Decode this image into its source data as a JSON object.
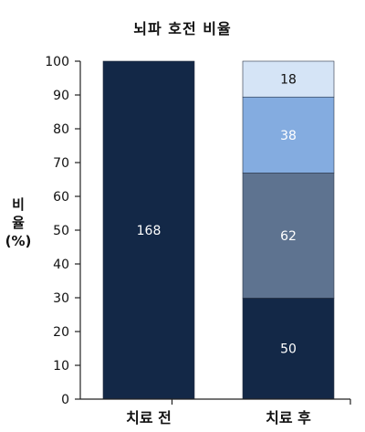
{
  "chart_data": {
    "type": "bar",
    "stacked": true,
    "title": "뇌파 호전 비율",
    "ylabel_lines": [
      "비",
      "율",
      "(%)"
    ],
    "xlabel": "",
    "ylim": [
      0,
      100
    ],
    "yticks": [
      0,
      10,
      20,
      30,
      40,
      50,
      60,
      70,
      80,
      90,
      100
    ],
    "grid": false,
    "legend": "none",
    "categories": [
      "치료 전",
      "치료 후"
    ],
    "bars": [
      {
        "category": "치료 전",
        "segments": [
          {
            "count_label": "168",
            "from": 0,
            "to": 100,
            "color": "#132847",
            "text_color": "#ffffff"
          }
        ]
      },
      {
        "category": "치료 후",
        "segments": [
          {
            "count_label": "50",
            "from": 0,
            "to": 29.9,
            "color": "#132847",
            "text_color": "#ffffff"
          },
          {
            "count_label": "62",
            "from": 29.9,
            "to": 66.9,
            "color": "#5e7390",
            "text_color": "#ffffff"
          },
          {
            "count_label": "38",
            "from": 66.9,
            "to": 89.4,
            "color": "#84ace0",
            "text_color": "#ffffff"
          },
          {
            "count_label": "18",
            "from": 89.4,
            "to": 100,
            "color": "#d5e4f6",
            "text_color": "#111111"
          }
        ]
      }
    ]
  }
}
